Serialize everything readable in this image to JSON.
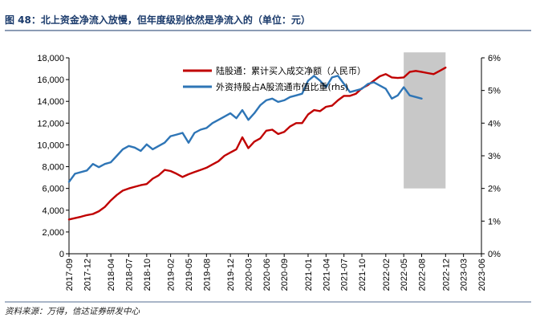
{
  "figure": {
    "title": "图 48：北上资金净流入放慢，但年度级别依然是净流入的（单位：元）",
    "source": "资料来源：万得，信达证券研发中心"
  },
  "chart_data": {
    "type": "line",
    "title": "图 48：北上资金净流入放慢，但年度级别依然是净流入的（单位：元）",
    "xlabel": "",
    "ylabel": "",
    "x_ticks": [
      "2017-09",
      "2017-12",
      "2018-04",
      "2018-07",
      "2018-10",
      "2019-02",
      "2019-05",
      "2019-08",
      "2019-12",
      "2020-03",
      "2020-06",
      "2020-09",
      "2021-01",
      "2021-04",
      "2021-07",
      "2021-10",
      "2022-02",
      "2022-05",
      "2022-08",
      "2022-12",
      "2023-03",
      "2023-06"
    ],
    "x_range": [
      "2017-09",
      "2023-06"
    ],
    "y_left": {
      "ticks": [
        "0",
        "2,000",
        "4,000",
        "6,000",
        "8,000",
        "10,000",
        "12,000",
        "14,000",
        "16,000",
        "18,000"
      ],
      "range": [
        0,
        18000
      ]
    },
    "y_right": {
      "ticks": [
        "0%",
        "1%",
        "2%",
        "3%",
        "4%",
        "5%",
        "6%"
      ],
      "range": [
        0,
        6
      ]
    },
    "legend_position": "top-center",
    "grid": false,
    "highlight_region": {
      "x_start": "2022-05",
      "x_end": "2022-12",
      "y_left_start": 6000,
      "y_left_end": 18500,
      "color": "#c8c8c8"
    },
    "series": [
      {
        "name": "陆股通：累计买入成交净额（人民币）",
        "axis": "left",
        "color": "#c00000",
        "points": [
          [
            "2017-09",
            3150
          ],
          [
            "2017-11",
            3400
          ],
          [
            "2017-12",
            3550
          ],
          [
            "2018-01",
            3650
          ],
          [
            "2018-02",
            3900
          ],
          [
            "2018-03",
            4300
          ],
          [
            "2018-04",
            4900
          ],
          [
            "2018-05",
            5400
          ],
          [
            "2018-06",
            5800
          ],
          [
            "2018-07",
            6000
          ],
          [
            "2018-08",
            6150
          ],
          [
            "2018-09",
            6300
          ],
          [
            "2018-10",
            6400
          ],
          [
            "2018-11",
            6900
          ],
          [
            "2018-12",
            7200
          ],
          [
            "2019-01",
            7700
          ],
          [
            "2019-02",
            7600
          ],
          [
            "2019-03",
            7350
          ],
          [
            "2019-04",
            7050
          ],
          [
            "2019-05",
            7300
          ],
          [
            "2019-06",
            7500
          ],
          [
            "2019-07",
            7700
          ],
          [
            "2019-08",
            7900
          ],
          [
            "2019-09",
            8200
          ],
          [
            "2019-10",
            8500
          ],
          [
            "2019-11",
            9000
          ],
          [
            "2019-12",
            9300
          ],
          [
            "2020-01",
            9600
          ],
          [
            "2020-02",
            10700
          ],
          [
            "2020-03",
            9700
          ],
          [
            "2020-04",
            10300
          ],
          [
            "2020-05",
            10600
          ],
          [
            "2020-06",
            11300
          ],
          [
            "2020-07",
            11400
          ],
          [
            "2020-08",
            11000
          ],
          [
            "2020-09",
            11200
          ],
          [
            "2020-10",
            11700
          ],
          [
            "2020-11",
            12000
          ],
          [
            "2020-12",
            12000
          ],
          [
            "2021-01",
            12800
          ],
          [
            "2021-02",
            13200
          ],
          [
            "2021-03",
            13100
          ],
          [
            "2021-04",
            13500
          ],
          [
            "2021-05",
            13600
          ],
          [
            "2021-06",
            14100
          ],
          [
            "2021-07",
            14500
          ],
          [
            "2021-08",
            14500
          ],
          [
            "2021-09",
            14700
          ],
          [
            "2021-10",
            15200
          ],
          [
            "2021-11",
            15500
          ],
          [
            "2021-12",
            15900
          ],
          [
            "2022-01",
            16300
          ],
          [
            "2022-02",
            16500
          ],
          [
            "2022-03",
            16200
          ],
          [
            "2022-04",
            16150
          ],
          [
            "2022-05",
            16200
          ],
          [
            "2022-06",
            16700
          ],
          [
            "2022-07",
            16800
          ],
          [
            "2022-08",
            16700
          ],
          [
            "2022-09",
            16600
          ],
          [
            "2022-10",
            16500
          ],
          [
            "2022-11",
            16800
          ],
          [
            "2022-12",
            17100
          ]
        ]
      },
      {
        "name": "外资持股占A股流通市值比重(rhs)",
        "axis": "right",
        "color": "#2e75b6",
        "points": [
          [
            "2017-09",
            2.2
          ],
          [
            "2017-10",
            2.45
          ],
          [
            "2017-12",
            2.55
          ],
          [
            "2018-01",
            2.75
          ],
          [
            "2018-02",
            2.65
          ],
          [
            "2018-03",
            2.75
          ],
          [
            "2018-04",
            2.8
          ],
          [
            "2018-05",
            3.0
          ],
          [
            "2018-06",
            3.2
          ],
          [
            "2018-07",
            3.3
          ],
          [
            "2018-08",
            3.25
          ],
          [
            "2018-09",
            3.15
          ],
          [
            "2018-10",
            3.35
          ],
          [
            "2018-11",
            3.2
          ],
          [
            "2018-12",
            3.3
          ],
          [
            "2019-01",
            3.4
          ],
          [
            "2019-02",
            3.6
          ],
          [
            "2019-03",
            3.65
          ],
          [
            "2019-04",
            3.7
          ],
          [
            "2019-05",
            3.4
          ],
          [
            "2019-06",
            3.7
          ],
          [
            "2019-07",
            3.8
          ],
          [
            "2019-08",
            3.85
          ],
          [
            "2019-09",
            4.0
          ],
          [
            "2019-10",
            4.1
          ],
          [
            "2019-11",
            4.2
          ],
          [
            "2019-12",
            4.3
          ],
          [
            "2020-01",
            4.15
          ],
          [
            "2020-02",
            4.4
          ],
          [
            "2020-03",
            4.1
          ],
          [
            "2020-04",
            4.3
          ],
          [
            "2020-05",
            4.55
          ],
          [
            "2020-06",
            4.7
          ],
          [
            "2020-07",
            4.75
          ],
          [
            "2020-08",
            4.65
          ],
          [
            "2020-09",
            4.7
          ],
          [
            "2020-10",
            4.8
          ],
          [
            "2020-11",
            4.85
          ],
          [
            "2020-12",
            4.9
          ],
          [
            "2021-01",
            5.3
          ],
          [
            "2021-02",
            5.45
          ],
          [
            "2021-03",
            5.3
          ],
          [
            "2021-04",
            5.1
          ],
          [
            "2021-05",
            5.4
          ],
          [
            "2021-06",
            5.45
          ],
          [
            "2021-07",
            5.2
          ],
          [
            "2021-08",
            4.95
          ],
          [
            "2021-09",
            5.0
          ],
          [
            "2021-10",
            5.05
          ],
          [
            "2021-11",
            5.2
          ],
          [
            "2021-12",
            5.25
          ],
          [
            "2022-01",
            5.15
          ],
          [
            "2022-02",
            5.05
          ],
          [
            "2022-03",
            4.75
          ],
          [
            "2022-04",
            4.85
          ],
          [
            "2022-05",
            5.1
          ],
          [
            "2022-06",
            4.85
          ],
          [
            "2022-07",
            4.8
          ],
          [
            "2022-08",
            4.75
          ]
        ]
      }
    ]
  }
}
